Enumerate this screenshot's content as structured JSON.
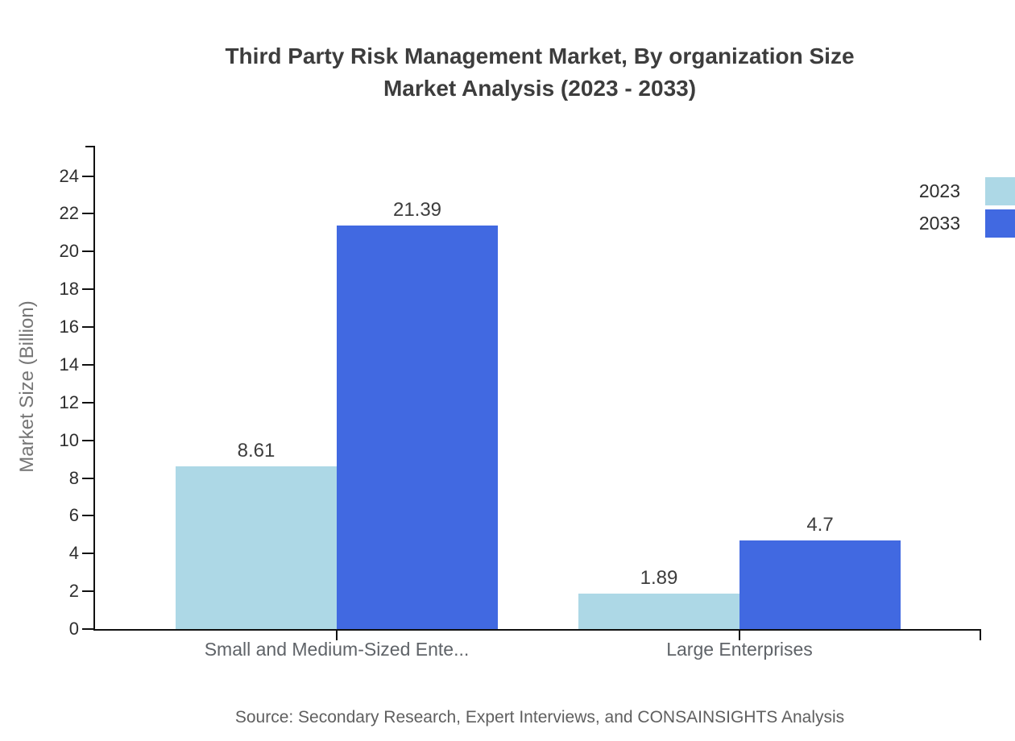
{
  "chart_data": {
    "type": "bar",
    "title": "Third Party Risk Management Market, By organization Size",
    "subtitle": "Market Analysis (2023 - 2033)",
    "ylabel": "Market Size (Billion)",
    "xlabel": "",
    "categories": [
      "Small and Medium-Sized Ente...",
      "Large Enterprises"
    ],
    "series": [
      {
        "name": "2023",
        "color": "#ADD8E6",
        "values": [
          8.61,
          1.89
        ]
      },
      {
        "name": "2033",
        "color": "#4169E1",
        "values": [
          21.39,
          4.7
        ]
      }
    ],
    "ylim": [
      0,
      25.6
    ],
    "yticks": [
      0,
      2,
      4,
      6,
      8,
      10,
      12,
      14,
      16,
      18,
      20,
      22,
      24
    ],
    "grid": false,
    "legend_position": "top-right"
  },
  "footer": {
    "source": "Source: Secondary Research, Expert Interviews, and CONSAINSIGHTS Analysis"
  }
}
